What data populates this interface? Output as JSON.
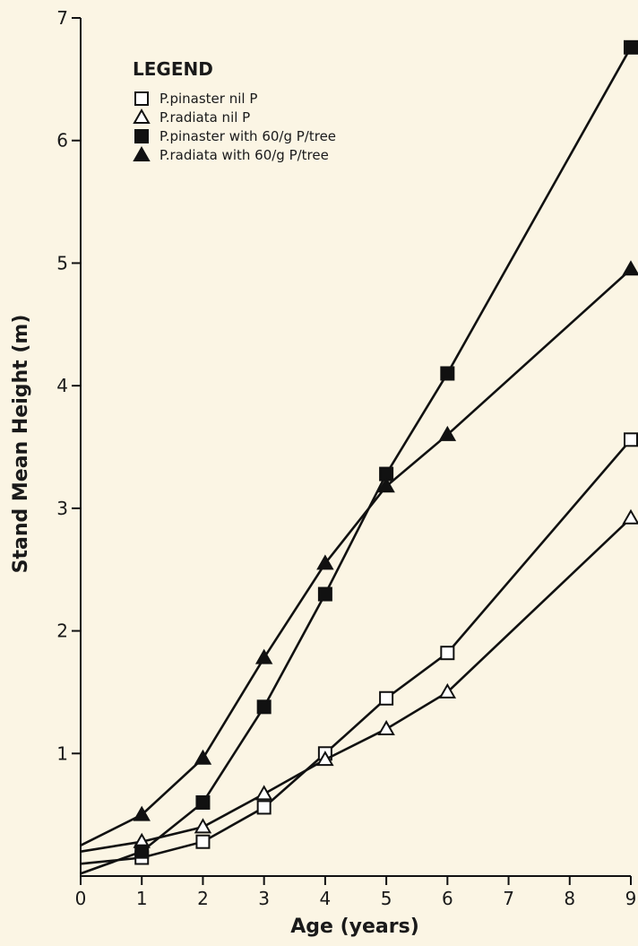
{
  "chart_data": {
    "type": "line",
    "xlabel": "Age (years)",
    "ylabel": "Stand Mean Height (m)",
    "xlim": [
      0,
      9
    ],
    "ylim": [
      0,
      7
    ],
    "x_ticks": [
      "0",
      "1",
      "2",
      "3",
      "4",
      "5",
      "6",
      "7",
      "8",
      "9"
    ],
    "y_ticks": [
      "1",
      "2",
      "3",
      "4",
      "5",
      "6",
      "7"
    ],
    "grid": false,
    "legend_title": "LEGEND",
    "legend_position": "top-left",
    "series": [
      {
        "name": "P.pinaster nil P",
        "marker": "square-open",
        "x": [
          0,
          1,
          2,
          3,
          4,
          5,
          6,
          9
        ],
        "y": [
          0.1,
          0.15,
          0.28,
          0.56,
          1.0,
          1.45,
          1.82,
          3.56
        ]
      },
      {
        "name": "P.radiata nil P",
        "marker": "triangle-open",
        "x": [
          0,
          1,
          2,
          3,
          4,
          5,
          6,
          9
        ],
        "y": [
          0.2,
          0.28,
          0.4,
          0.67,
          0.95,
          1.2,
          1.5,
          2.92
        ]
      },
      {
        "name": "P.pinaster with 60/g P/tree",
        "marker": "square-filled",
        "x": [
          0,
          1,
          2,
          3,
          4,
          5,
          6,
          9
        ],
        "y": [
          0.02,
          0.2,
          0.6,
          1.38,
          2.3,
          3.28,
          4.1,
          6.76
        ]
      },
      {
        "name": "P.radiata with 60/g P/tree",
        "marker": "triangle-filled",
        "x": [
          0,
          1,
          2,
          3,
          4,
          5,
          6,
          9
        ],
        "y": [
          0.25,
          0.5,
          0.96,
          1.78,
          2.55,
          3.18,
          3.6,
          4.95
        ]
      }
    ]
  }
}
